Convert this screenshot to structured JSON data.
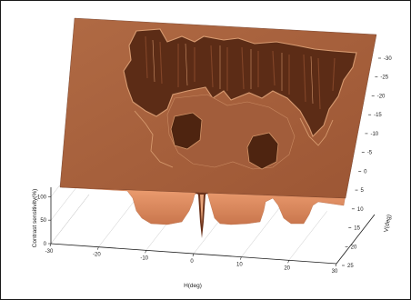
{
  "chart_data": {
    "type": "surface-3d",
    "title": "",
    "xlabel": "H(deg)",
    "ylabel": "V(deg)",
    "zlabel": "Contrast sensitivity(%)",
    "x_ticks": [
      "-30",
      "-20",
      "-10",
      "0",
      "10",
      "20",
      "30"
    ],
    "y_ticks": [
      "-30",
      "-25",
      "-20",
      "-15",
      "-10",
      "-5",
      "0",
      "5",
      "10",
      "15",
      "20",
      "25"
    ],
    "z_ticks": [
      "0",
      "50",
      "100"
    ],
    "xlim": [
      -30,
      30
    ],
    "ylim": [
      -30,
      25
    ],
    "zlim": [
      0,
      120
    ],
    "grid": true,
    "colors": {
      "top": "#a8623e",
      "top_dark": "#86482a",
      "hole": "#5c2c16",
      "hole_edge": "#c98a62",
      "side_front": "#e0956a",
      "side_shadow": "#9a5533",
      "frame": "#1a1a1a",
      "grid": "#c8c8c8"
    }
  }
}
